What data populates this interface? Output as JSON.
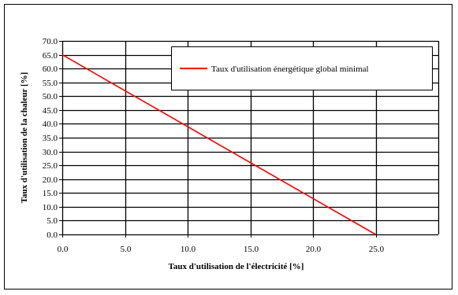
{
  "chart_data": {
    "type": "line",
    "title": "",
    "xlabel": "Taux d'utilisation de l'électricité [%]",
    "ylabel": "Taux d'utilisation de la chaleur [%]",
    "xlim": [
      0,
      30
    ],
    "ylim": [
      0,
      70
    ],
    "x_ticks": [
      0,
      5,
      10,
      15,
      20,
      25
    ],
    "x_tick_labels": [
      "0.0",
      "5.0",
      "10.0",
      "15.0",
      "20.0",
      "25.0"
    ],
    "y_ticks": [
      0,
      5,
      10,
      15,
      20,
      25,
      30,
      35,
      40,
      45,
      50,
      55,
      60,
      65,
      70
    ],
    "y_tick_labels": [
      "0.0",
      "5.0",
      "10.0",
      "15.0",
      "20.0",
      "25.0",
      "30.0",
      "35.0",
      "40.0",
      "45.0",
      "50.0",
      "55.0",
      "60.0",
      "65.0",
      "70.0"
    ],
    "grid": true,
    "legend_position": "top-right",
    "series": [
      {
        "name": "Taux d'utilisation énergétique global minimal",
        "color": "#ff0000",
        "x": [
          0,
          25
        ],
        "y": [
          65,
          0
        ]
      }
    ]
  }
}
